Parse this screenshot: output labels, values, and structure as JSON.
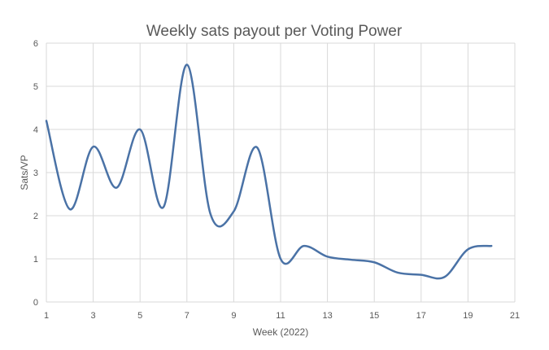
{
  "chart_data": {
    "type": "line",
    "title": "Weekly sats payout per Voting Power",
    "xlabel": "Week (2022)",
    "ylabel": "Sats/VP",
    "xlim": [
      1,
      21
    ],
    "ylim": [
      0,
      6
    ],
    "x_ticks": [
      1,
      3,
      5,
      7,
      9,
      11,
      13,
      15,
      17,
      19,
      21
    ],
    "y_ticks": [
      0,
      1,
      2,
      3,
      4,
      5,
      6
    ],
    "grid": true,
    "smooth": true,
    "line_color": "#4a72a6",
    "series": [
      {
        "x": [
          1,
          2,
          3,
          4,
          5,
          6,
          7,
          8,
          9,
          10,
          11,
          12,
          13,
          14,
          15,
          16,
          17,
          18,
          19,
          20
        ],
        "values": [
          4.2,
          2.15,
          3.6,
          2.65,
          4.0,
          2.2,
          5.5,
          2.05,
          2.1,
          3.58,
          1.0,
          1.3,
          1.05,
          0.98,
          0.92,
          0.68,
          0.63,
          0.58,
          1.22,
          1.3
        ]
      }
    ]
  }
}
